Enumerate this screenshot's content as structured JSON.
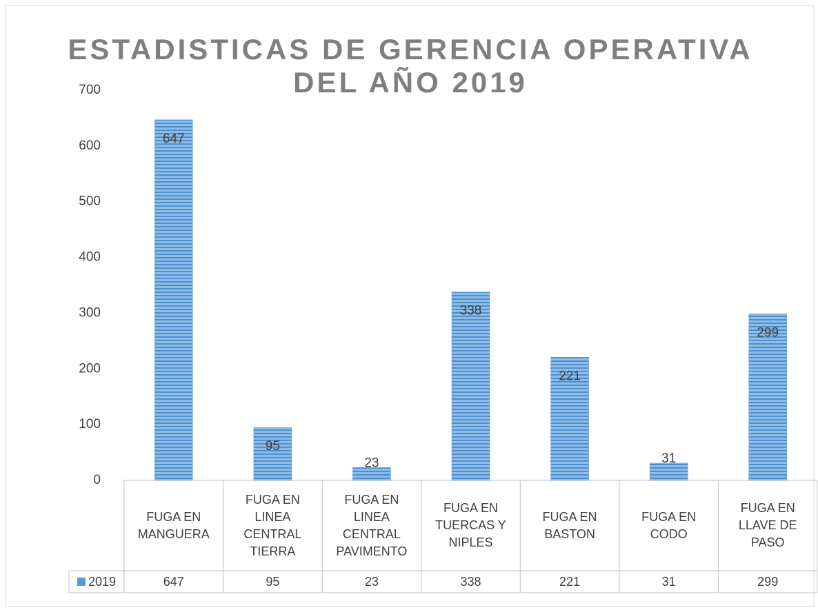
{
  "chart_data": {
    "type": "bar",
    "title": [
      "ESTADISTICAS DE GERENCIA OPERATIVA",
      "DEL AÑO 2019"
    ],
    "categories": [
      "FUGA EN MANGUERA",
      "FUGA EN LINEA CENTRAL TIERRA",
      "FUGA EN LINEA CENTRAL PAVIMENTO",
      "FUGA EN TUERCAS Y NIPLES",
      "FUGA EN BASTON",
      "FUGA EN CODO",
      "FUGA EN LLAVE DE PASO"
    ],
    "series": [
      {
        "name": "2019",
        "color": "#5b9bd5",
        "values": [
          647,
          95,
          23,
          338,
          221,
          31,
          299
        ]
      }
    ],
    "ylim": [
      0,
      700
    ],
    "yticks": [
      0,
      100,
      200,
      300,
      400,
      500,
      600,
      700
    ],
    "grid": false,
    "data_table": true
  }
}
